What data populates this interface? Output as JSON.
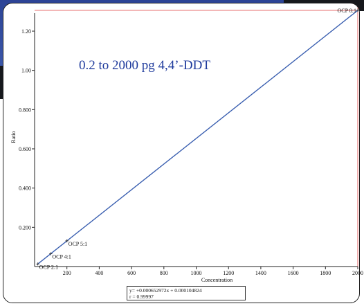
{
  "chart_data": {
    "type": "line",
    "subtitle": "0.2 to 2000 pg 4,4’-DDT",
    "xlabel": "Concentration",
    "ylabel": "Ratio",
    "xlim": [
      0,
      2000
    ],
    "ylim": [
      0,
      1.32
    ],
    "xticks": [
      200,
      400,
      600,
      800,
      1000,
      1200,
      1400,
      1600,
      1800,
      2000
    ],
    "yticks": [
      0.2,
      0.4,
      0.6,
      0.8,
      1.0,
      1.2
    ],
    "xtick_labels": [
      "200",
      "400",
      "600",
      "800",
      "1000",
      "1200",
      "1400",
      "1600",
      "1800",
      "2000"
    ],
    "ytick_labels": [
      "0.200",
      "0.400",
      "0.600",
      "0.800",
      "1.00",
      "1.20"
    ],
    "points": [
      {
        "label": "OCP 2:1",
        "x": 20,
        "y": 0.013
      },
      {
        "label": "OCP 4:1",
        "x": 100,
        "y": 0.065
      },
      {
        "label": "OCP 5:1",
        "x": 200,
        "y": 0.131
      },
      {
        "label": "OCP 8:1",
        "x": 2000,
        "y": 1.306
      }
    ],
    "fit": {
      "slope": 0.000652972,
      "intercept": 0.000104824
    },
    "equation_text": "y= +0.000652972x + 0.000104824",
    "r_text": "r = 0.99997",
    "colors": {
      "fit_line": "#3a5fb0",
      "reference_lines": "#e05050",
      "subtitle": "#1e3a9c"
    }
  }
}
